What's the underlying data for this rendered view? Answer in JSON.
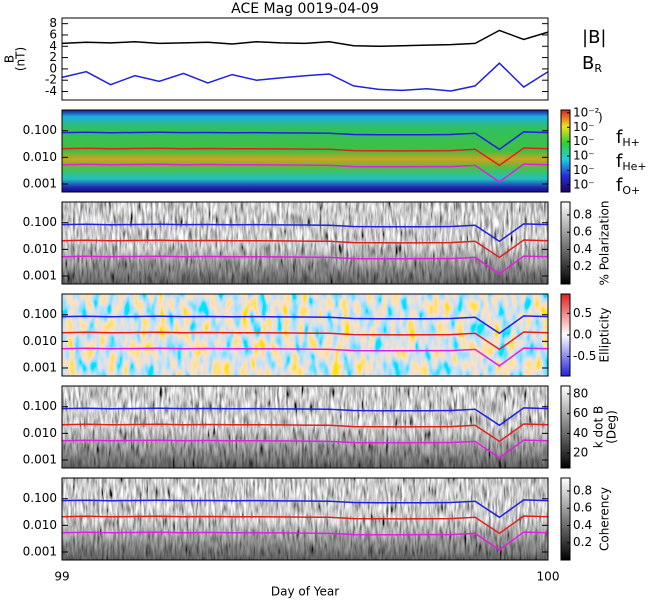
{
  "chart_data": [
    {
      "type": "line",
      "title": "ACE Mag 0019-04-09",
      "ylabel": [
        "B",
        "(nT)"
      ],
      "x": [
        99.0,
        99.05,
        99.1,
        99.15,
        99.2,
        99.25,
        99.3,
        99.35,
        99.4,
        99.45,
        99.5,
        99.55,
        99.6,
        99.65,
        99.7,
        99.75,
        99.8,
        99.85,
        99.9,
        99.95,
        100.0
      ],
      "xlim": [
        99,
        100
      ],
      "ylim": [
        -5.5,
        9
      ],
      "yticks": [
        -4,
        -2,
        0,
        2,
        4,
        6,
        8
      ],
      "series": [
        {
          "name": "|B|",
          "color": "#000000",
          "values": [
            4.5,
            4.7,
            4.6,
            4.8,
            4.5,
            4.6,
            4.7,
            4.4,
            4.8,
            4.6,
            4.5,
            4.8,
            4.1,
            4.0,
            4.1,
            4.2,
            4.3,
            4.5,
            6.8,
            5.2,
            6.5
          ]
        },
        {
          "name": "B",
          "subscript": "R",
          "color": "#2020e0",
          "values": [
            -1.5,
            -0.5,
            -2.8,
            -1.2,
            -2.2,
            -0.8,
            -2.5,
            -1.0,
            -2.0,
            -1.6,
            -1.2,
            -0.9,
            -3.0,
            -3.6,
            -3.8,
            -3.5,
            -3.9,
            -3.0,
            1.0,
            -3.2,
            -0.5
          ]
        }
      ]
    },
    {
      "type": "line",
      "log_y": true,
      "background": "spectrum",
      "x": [
        99.0,
        99.05,
        99.1,
        99.15,
        99.2,
        99.25,
        99.3,
        99.35,
        99.4,
        99.45,
        99.5,
        99.55,
        99.6,
        99.65,
        99.7,
        99.75,
        99.8,
        99.85,
        99.9,
        99.95,
        100.0
      ],
      "xlim": [
        99,
        100
      ],
      "ylim": [
        0.0005,
        0.6
      ],
      "yticks": [
        0.001,
        {
          "value": 0.01,
          "label": "0.010"
        },
        {
          "value": 0.1,
          "label": "0.100"
        }
      ],
      "colorbar_label": ")",
      "clim": [
        -7.5,
        -1.8
      ],
      "colormap": "rainbow",
      "cticks": [
        {
          "value": -2,
          "label": "10⁻²"
        },
        {
          "value": -3,
          "label": "10⁻"
        },
        {
          "value": -4,
          "label": "10⁻"
        },
        {
          "value": -5,
          "label": "10⁻"
        },
        {
          "value": -6,
          "label": "10⁻"
        },
        {
          "value": -7,
          "label": "10⁻"
        }
      ],
      "series": [
        {
          "name": "f",
          "subscript": "H+",
          "color": "#2020e0",
          "values": [
            0.085,
            0.088,
            0.084,
            0.086,
            0.087,
            0.085,
            0.086,
            0.084,
            0.085,
            0.083,
            0.082,
            0.08,
            0.072,
            0.071,
            0.07,
            0.071,
            0.072,
            0.08,
            0.02,
            0.09,
            0.085
          ]
        },
        {
          "name": "f",
          "subscript": "He+",
          "color": "#e02020",
          "values": [
            0.021,
            0.022,
            0.021,
            0.0215,
            0.022,
            0.021,
            0.0215,
            0.021,
            0.021,
            0.0208,
            0.0205,
            0.02,
            0.018,
            0.0178,
            0.0175,
            0.0178,
            0.018,
            0.02,
            0.005,
            0.0225,
            0.021
          ]
        },
        {
          "name": "f",
          "subscript": "O+",
          "color": "#e020e0",
          "values": [
            0.0053,
            0.0055,
            0.0053,
            0.0054,
            0.0055,
            0.0053,
            0.0054,
            0.0053,
            0.0053,
            0.0052,
            0.0051,
            0.005,
            0.0045,
            0.0044,
            0.0044,
            0.0045,
            0.0045,
            0.005,
            0.0012,
            0.0056,
            0.0053
          ]
        }
      ]
    },
    {
      "type": "line",
      "log_y": true,
      "background": "gray",
      "x": [
        99.0,
        99.05,
        99.1,
        99.15,
        99.2,
        99.25,
        99.3,
        99.35,
        99.4,
        99.45,
        99.5,
        99.55,
        99.6,
        99.65,
        99.7,
        99.75,
        99.8,
        99.85,
        99.9,
        99.95,
        100.0
      ],
      "xlim": [
        99,
        100
      ],
      "ylim": [
        0.0005,
        0.6
      ],
      "yticks": [
        0.001,
        {
          "value": 0.01,
          "label": "0.010"
        },
        {
          "value": 0.1,
          "label": "0.100"
        }
      ],
      "colorbar_label": "% Polarization",
      "clim": [
        0,
        0.95
      ],
      "colormap": "gray",
      "cticks": [
        0.2,
        0.4,
        0.6,
        0.8
      ],
      "series": [
        {
          "color": "#2020e0",
          "values": [
            0.085,
            0.088,
            0.084,
            0.086,
            0.087,
            0.085,
            0.086,
            0.084,
            0.085,
            0.083,
            0.082,
            0.08,
            0.072,
            0.071,
            0.07,
            0.071,
            0.072,
            0.08,
            0.02,
            0.09,
            0.085
          ]
        },
        {
          "color": "#e02020",
          "values": [
            0.021,
            0.022,
            0.021,
            0.0215,
            0.022,
            0.021,
            0.0215,
            0.021,
            0.021,
            0.0208,
            0.0205,
            0.02,
            0.018,
            0.0178,
            0.0175,
            0.0178,
            0.018,
            0.02,
            0.005,
            0.0225,
            0.021
          ]
        },
        {
          "color": "#e020e0",
          "values": [
            0.0053,
            0.0055,
            0.0053,
            0.0054,
            0.0055,
            0.0053,
            0.0054,
            0.0053,
            0.0053,
            0.0052,
            0.0051,
            0.005,
            0.0045,
            0.0044,
            0.0044,
            0.0045,
            0.0045,
            0.005,
            0.0012,
            0.0056,
            0.0053
          ]
        }
      ]
    },
    {
      "type": "line",
      "log_y": true,
      "background": "redblue",
      "x": [
        99.0,
        99.05,
        99.1,
        99.15,
        99.2,
        99.25,
        99.3,
        99.35,
        99.4,
        99.45,
        99.5,
        99.55,
        99.6,
        99.65,
        99.7,
        99.75,
        99.8,
        99.85,
        99.9,
        99.95,
        100.0
      ],
      "xlim": [
        99,
        100
      ],
      "ylim": [
        0.0005,
        0.6
      ],
      "yticks": [
        0.001,
        {
          "value": 0.01,
          "label": "0.010"
        },
        {
          "value": 0.1,
          "label": "0.100"
        }
      ],
      "colorbar_label": "Ellipticity",
      "clim": [
        -0.95,
        0.95
      ],
      "colormap": "redblue",
      "cticks": [
        -0.5,
        {
          "value": 0,
          "label": "0.0"
        },
        0.5
      ],
      "series": [
        {
          "color": "#2020e0",
          "values": [
            0.085,
            0.088,
            0.084,
            0.086,
            0.087,
            0.085,
            0.086,
            0.084,
            0.085,
            0.083,
            0.082,
            0.08,
            0.072,
            0.071,
            0.07,
            0.071,
            0.072,
            0.08,
            0.02,
            0.09,
            0.085
          ]
        },
        {
          "color": "#e02020",
          "values": [
            0.021,
            0.022,
            0.021,
            0.0215,
            0.022,
            0.021,
            0.0215,
            0.021,
            0.021,
            0.0208,
            0.0205,
            0.02,
            0.018,
            0.0178,
            0.0175,
            0.0178,
            0.018,
            0.02,
            0.005,
            0.0225,
            0.021
          ]
        },
        {
          "color": "#e020e0",
          "values": [
            0.0053,
            0.0055,
            0.0053,
            0.0054,
            0.0055,
            0.0053,
            0.0054,
            0.0053,
            0.0053,
            0.0052,
            0.0051,
            0.005,
            0.0045,
            0.0044,
            0.0044,
            0.0045,
            0.0045,
            0.005,
            0.0012,
            0.0056,
            0.0053
          ]
        }
      ]
    },
    {
      "type": "line",
      "log_y": true,
      "background": "gray",
      "x": [
        99.0,
        99.05,
        99.1,
        99.15,
        99.2,
        99.25,
        99.3,
        99.35,
        99.4,
        99.45,
        99.5,
        99.55,
        99.6,
        99.65,
        99.7,
        99.75,
        99.8,
        99.85,
        99.9,
        99.95,
        100.0
      ],
      "xlim": [
        99,
        100
      ],
      "ylim": [
        0.0005,
        0.6
      ],
      "yticks": [
        0.001,
        {
          "value": 0.01,
          "label": "0.010"
        },
        {
          "value": 0.1,
          "label": "0.100"
        }
      ],
      "colorbar_label": [
        "k dot B",
        "(Deg)"
      ],
      "clim": [
        5,
        88
      ],
      "colormap": "gray",
      "cticks": [
        20,
        40,
        60,
        80
      ],
      "series": [
        {
          "color": "#2020e0",
          "values": [
            0.085,
            0.088,
            0.084,
            0.086,
            0.087,
            0.085,
            0.086,
            0.084,
            0.085,
            0.083,
            0.082,
            0.08,
            0.072,
            0.071,
            0.07,
            0.071,
            0.072,
            0.08,
            0.02,
            0.09,
            0.085
          ]
        },
        {
          "color": "#e02020",
          "values": [
            0.021,
            0.022,
            0.021,
            0.0215,
            0.022,
            0.021,
            0.0215,
            0.021,
            0.021,
            0.0208,
            0.0205,
            0.02,
            0.018,
            0.0178,
            0.0175,
            0.0178,
            0.018,
            0.02,
            0.005,
            0.0225,
            0.021
          ]
        },
        {
          "color": "#e020e0",
          "values": [
            0.0053,
            0.0055,
            0.0053,
            0.0054,
            0.0055,
            0.0053,
            0.0054,
            0.0053,
            0.0053,
            0.0052,
            0.0051,
            0.005,
            0.0045,
            0.0044,
            0.0044,
            0.0045,
            0.0045,
            0.005,
            0.0012,
            0.0056,
            0.0053
          ]
        }
      ]
    },
    {
      "type": "line",
      "log_y": true,
      "background": "gray",
      "x": [
        99.0,
        99.05,
        99.1,
        99.15,
        99.2,
        99.25,
        99.3,
        99.35,
        99.4,
        99.45,
        99.5,
        99.55,
        99.6,
        99.65,
        99.7,
        99.75,
        99.8,
        99.85,
        99.9,
        99.95,
        100.0
      ],
      "xlim": [
        99,
        100
      ],
      "xticks": [
        99,
        100
      ],
      "xlabel": "Day of Year",
      "ylim": [
        0.0005,
        0.6
      ],
      "yticks": [
        0.001,
        {
          "value": 0.01,
          "label": "0.010"
        },
        {
          "value": 0.1,
          "label": "0.100"
        }
      ],
      "colorbar_label": "Coherency",
      "clim": [
        0,
        0.95
      ],
      "colormap": "gray",
      "cticks": [
        0.2,
        0.4,
        0.6,
        0.8
      ],
      "series": [
        {
          "color": "#2020e0",
          "values": [
            0.085,
            0.088,
            0.084,
            0.086,
            0.087,
            0.085,
            0.086,
            0.084,
            0.085,
            0.083,
            0.082,
            0.08,
            0.072,
            0.071,
            0.07,
            0.071,
            0.072,
            0.08,
            0.02,
            0.09,
            0.085
          ]
        },
        {
          "color": "#e02020",
          "values": [
            0.021,
            0.022,
            0.021,
            0.0215,
            0.022,
            0.021,
            0.0215,
            0.021,
            0.021,
            0.0208,
            0.0205,
            0.02,
            0.018,
            0.0178,
            0.0175,
            0.0178,
            0.018,
            0.02,
            0.005,
            0.0225,
            0.021
          ]
        },
        {
          "color": "#e020e0",
          "values": [
            0.0053,
            0.0055,
            0.0053,
            0.0054,
            0.0055,
            0.0053,
            0.0054,
            0.0053,
            0.0053,
            0.0052,
            0.0051,
            0.005,
            0.0045,
            0.0044,
            0.0044,
            0.0045,
            0.0045,
            0.005,
            0.0012,
            0.0056,
            0.0053
          ]
        }
      ]
    }
  ]
}
